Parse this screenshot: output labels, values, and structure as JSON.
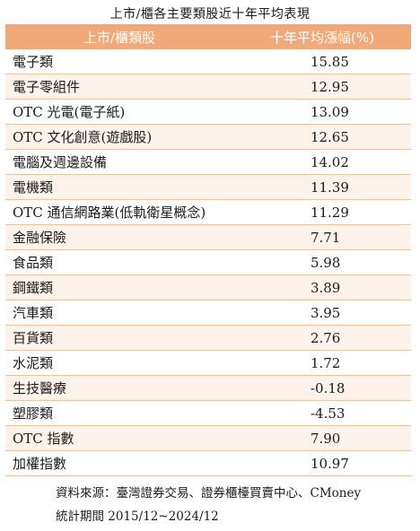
{
  "title": "上市/櫃各主要類股近十年平均表現",
  "table": {
    "headers": [
      "上市/櫃類股",
      "十年平均漲幅(%)"
    ],
    "rows": [
      {
        "name": "電子類",
        "value": "15.85"
      },
      {
        "name": "電子零組件",
        "value": "12.95"
      },
      {
        "name": "OTC 光電(電子紙)",
        "value": "13.09"
      },
      {
        "name": "OTC 文化創意(遊戲股)",
        "value": "12.65"
      },
      {
        "name": "電腦及週邊設備",
        "value": "14.02"
      },
      {
        "name": "電機類",
        "value": "11.39"
      },
      {
        "name": "OTC 通信網路業(低軌衛星概念)",
        "value": "11.29"
      },
      {
        "name": "金融保險",
        "value": "7.71"
      },
      {
        "name": "食品類",
        "value": "5.98"
      },
      {
        "name": "鋼鐵類",
        "value": "3.89"
      },
      {
        "name": "汽車類",
        "value": "3.95"
      },
      {
        "name": "百貨類",
        "value": "2.76"
      },
      {
        "name": "水泥類",
        "value": "1.72"
      },
      {
        "name": "生技醫療",
        "value": "-0.18"
      },
      {
        "name": "塑膠類",
        "value": "-4.53"
      },
      {
        "name": "OTC 指數",
        "value": "7.90"
      },
      {
        "name": "加權指數",
        "value": "10.97"
      }
    ]
  },
  "footer": {
    "source": "資料來源：臺灣證券交易、證券櫃檯買賣中心、CMoney",
    "period": "統計期間 2015/12~2024/12"
  },
  "colors": {
    "header_bg": "#f2a97a",
    "header_text": "#ffffff",
    "row_alt_bg": "#fdf3ea",
    "row_border": "#f2c3a0"
  }
}
